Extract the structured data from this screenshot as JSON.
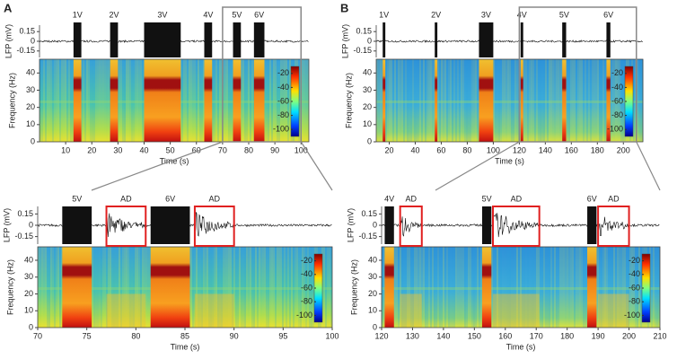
{
  "chart_data": [
    {
      "type": "spectrogram",
      "panel_label": "A",
      "xlim": [
        0,
        103
      ],
      "xticks": [
        10,
        20,
        30,
        40,
        50,
        60,
        70,
        80,
        90,
        100
      ],
      "xlabel": "Time (s)",
      "lfp_ylabel": "LFP (mV)",
      "lfp_ylim": [
        -0.25,
        0.25
      ],
      "lfp_yticks": [
        0.15,
        0,
        -0.15
      ],
      "ylabel": "Frequency (Hz)",
      "ylim": [
        0,
        48
      ],
      "yticks": [
        0,
        10,
        20,
        30,
        40
      ],
      "colorbar_lim": [
        -110,
        -10
      ],
      "colorbar_ticks": [
        -20,
        -40,
        -60,
        -80,
        -100
      ],
      "stimuli": [
        {
          "label": "1V",
          "start": 13,
          "end": 16
        },
        {
          "label": "2V",
          "start": 27,
          "end": 30
        },
        {
          "label": "3V",
          "start": 40,
          "end": 54
        },
        {
          "label": "4V",
          "start": 63,
          "end": 66
        },
        {
          "label": "5V",
          "start": 74,
          "end": 77
        },
        {
          "label": "6V",
          "start": 82,
          "end": 86
        }
      ],
      "zoom": [
        70,
        100
      ]
    },
    {
      "type": "spectrogram",
      "xlim": [
        70,
        100
      ],
      "xticks": [
        70,
        75,
        80,
        85,
        90,
        95,
        100
      ],
      "xlabel": "Time (s)",
      "lfp_ylabel": "LFP (mV)",
      "lfp_ylim": [
        -0.25,
        0.25
      ],
      "lfp_yticks": [
        0.15,
        0,
        -0.15
      ],
      "ylabel": "Frequency (Hz)",
      "ylim": [
        0,
        48
      ],
      "yticks": [
        0,
        10,
        20,
        30,
        40
      ],
      "colorbar_lim": [
        -110,
        -10
      ],
      "colorbar_ticks": [
        -20,
        -40,
        -60,
        -80,
        -100
      ],
      "stimuli": [
        {
          "label": "5V",
          "start": 72.5,
          "end": 75.5
        },
        {
          "label": "6V",
          "start": 81.5,
          "end": 85.5
        }
      ],
      "after_discharges": [
        {
          "label": "AD",
          "start": 77,
          "end": 81
        },
        {
          "label": "AD",
          "start": 86,
          "end": 90
        }
      ]
    },
    {
      "type": "spectrogram",
      "panel_label": "B",
      "xlim": [
        10,
        215
      ],
      "xticks": [
        20,
        40,
        60,
        80,
        100,
        120,
        140,
        160,
        180,
        200
      ],
      "xlabel": "Time (s)",
      "lfp_ylabel": "LFP (mV)",
      "lfp_ylim": [
        -0.25,
        0.25
      ],
      "lfp_yticks": [
        0.15,
        0,
        -0.15
      ],
      "ylabel": "Frequency (Hz)",
      "ylim": [
        0,
        48
      ],
      "yticks": [
        0,
        10,
        20,
        30,
        40
      ],
      "colorbar_lim": [
        -110,
        -10
      ],
      "colorbar_ticks": [
        -20,
        -40,
        -60,
        -80,
        -100
      ],
      "stimuli": [
        {
          "label": "1V",
          "start": 15,
          "end": 17
        },
        {
          "label": "2V",
          "start": 55,
          "end": 57
        },
        {
          "label": "3V",
          "start": 89,
          "end": 100
        },
        {
          "label": "4V",
          "start": 121,
          "end": 123
        },
        {
          "label": "5V",
          "start": 153,
          "end": 156
        },
        {
          "label": "6V",
          "start": 187,
          "end": 190
        }
      ],
      "zoom": [
        120,
        210
      ]
    },
    {
      "type": "spectrogram",
      "xlim": [
        120,
        210
      ],
      "xticks": [
        120,
        130,
        140,
        150,
        160,
        170,
        180,
        190,
        200,
        210
      ],
      "xlabel": "Time (s)",
      "lfp_ylabel": "LFP (mV)",
      "lfp_ylim": [
        -0.25,
        0.25
      ],
      "lfp_yticks": [
        0.15,
        0,
        -0.15
      ],
      "ylabel": "Frequency (Hz)",
      "ylim": [
        0,
        48
      ],
      "yticks": [
        0,
        10,
        20,
        30,
        40
      ],
      "colorbar_lim": [
        -110,
        -10
      ],
      "colorbar_ticks": [
        -20,
        -40,
        -60,
        -80,
        -100
      ],
      "stimuli": [
        {
          "label": "4V",
          "start": 121,
          "end": 124
        },
        {
          "label": "5V",
          "start": 152.5,
          "end": 155.5
        },
        {
          "label": "6V",
          "start": 186.5,
          "end": 189.5
        }
      ],
      "after_discharges": [
        {
          "label": "AD",
          "start": 126,
          "end": 133
        },
        {
          "label": "AD",
          "start": 156,
          "end": 171
        },
        {
          "label": "AD",
          "start": 190,
          "end": 200
        }
      ]
    }
  ]
}
